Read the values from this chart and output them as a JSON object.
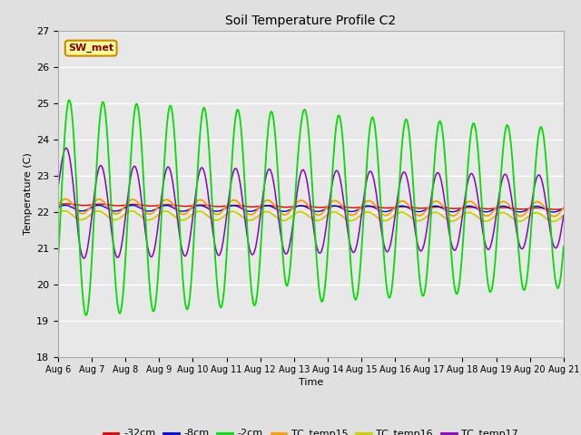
{
  "title": "Soil Temperature Profile C2",
  "xlabel": "Time",
  "ylabel": "Temperature (C)",
  "ylim": [
    18.0,
    27.0
  ],
  "yticks": [
    18.0,
    19.0,
    20.0,
    21.0,
    22.0,
    23.0,
    24.0,
    25.0,
    26.0,
    27.0
  ],
  "bg_color": "#e0e0e0",
  "plot_bg_color": "#e8e8e8",
  "annotation_text": "SW_met",
  "annotation_bg": "#ffff99",
  "annotation_border": "#cc8800",
  "annotation_text_color": "#880000",
  "colors": {
    "-32cm": "#dd0000",
    "-8cm": "#0000dd",
    "-2cm": "#00dd00",
    "TC_temp15": "#ff9900",
    "TC_temp16": "#cccc00",
    "TC_temp17": "#8800cc"
  },
  "xtick_labels": [
    "Aug 6",
    "Aug 7",
    "Aug 8",
    "Aug 9",
    "Aug 10",
    "Aug 11",
    "Aug 12",
    "Aug 13",
    "Aug 14",
    "Aug 15",
    "Aug 16",
    "Aug 17",
    "Aug 18",
    "Aug 19",
    "Aug 20",
    "Aug 21"
  ],
  "n_points": 3000,
  "days": 15
}
